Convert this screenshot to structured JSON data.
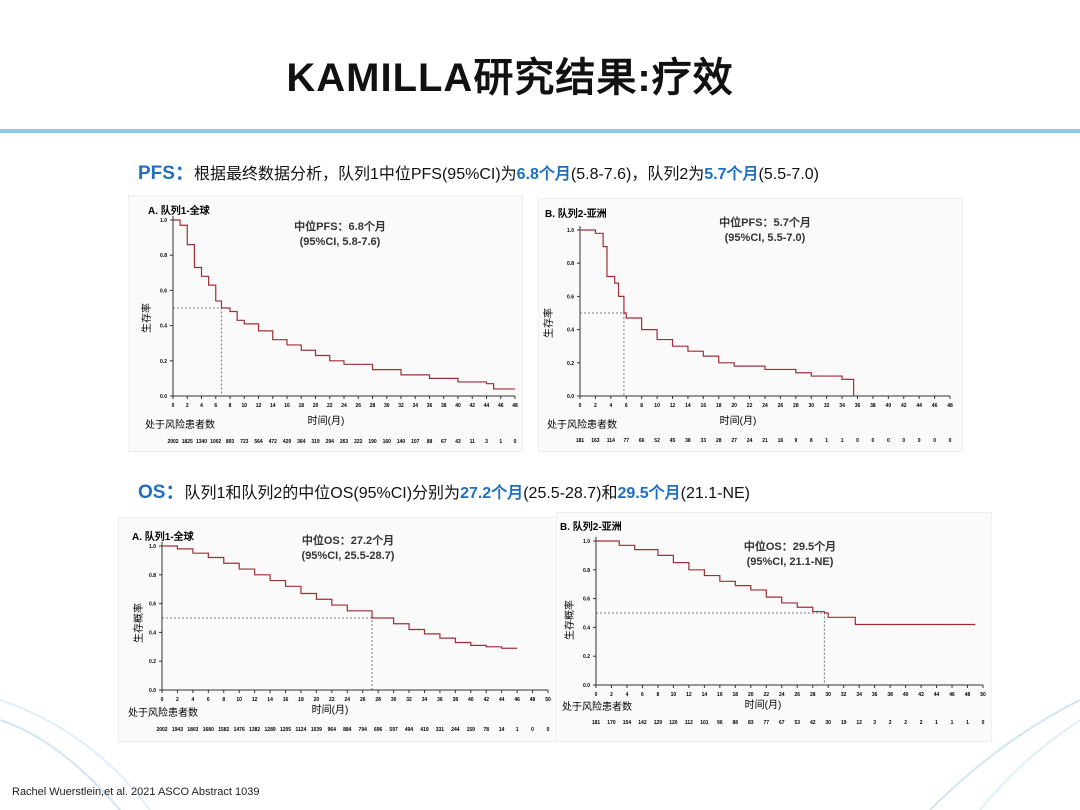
{
  "title": "KAMILLA研究结果:疗效",
  "pfs_summary": {
    "key": "PFS：",
    "t1": "根据最终数据分析，队列1中位PFS(95%CI)为",
    "v1": "6.8个月",
    "t2": "(5.8-7.6)，队列2为",
    "v2": "5.7个月",
    "t3": "(5.5-7.0)"
  },
  "os_summary": {
    "key": "OS：",
    "t1": "队列1和队列2的中位OS(95%CI)分别为",
    "v1": "27.2个月",
    "t2": "(25.5-28.7)和",
    "v2": "29.5个月",
    "t3": "(21.1-NE)"
  },
  "citation": "Rachel Wuerstlein,et al. 2021 ASCO Abstract 1039",
  "colors": {
    "accent": "#1f6fc0",
    "curve": "#b0303a",
    "rule": "#8fcbe0"
  },
  "chart_data": [
    {
      "type": "line",
      "id": "pfs-a",
      "panel_title": "A. 队列1-全球",
      "median_label": "中位PFS：6.8个月",
      "ci_label": "(95%CI, 5.8-7.6)",
      "ylabel": "生存率",
      "xlabel": "时间(月)",
      "at_risk_label": "处于风险患者数",
      "xlim": [
        0,
        48
      ],
      "ylim": [
        0,
        1
      ],
      "xticks": [
        0,
        2,
        4,
        6,
        8,
        10,
        12,
        14,
        16,
        18,
        20,
        22,
        24,
        26,
        28,
        30,
        32,
        34,
        36,
        38,
        40,
        42,
        44,
        46,
        48
      ],
      "yticks": [
        "0.0",
        "0.2",
        "0.4",
        "0.6",
        "0.8",
        "1.0"
      ],
      "median": 6.8,
      "at_risk": [
        2002,
        1825,
        1340,
        1002,
        893,
        723,
        564,
        472,
        429,
        364,
        319,
        294,
        263,
        222,
        190,
        160,
        140,
        107,
        88,
        67,
        43,
        11,
        3,
        1,
        0
      ],
      "curve": [
        [
          0,
          1
        ],
        [
          1,
          0.97
        ],
        [
          2,
          0.86
        ],
        [
          3,
          0.73
        ],
        [
          4,
          0.68
        ],
        [
          5,
          0.63
        ],
        [
          6,
          0.54
        ],
        [
          6.8,
          0.5
        ],
        [
          8,
          0.48
        ],
        [
          9,
          0.43
        ],
        [
          10,
          0.41
        ],
        [
          12,
          0.37
        ],
        [
          14,
          0.32
        ],
        [
          16,
          0.29
        ],
        [
          18,
          0.26
        ],
        [
          20,
          0.23
        ],
        [
          22,
          0.2
        ],
        [
          24,
          0.18
        ],
        [
          28,
          0.15
        ],
        [
          32,
          0.12
        ],
        [
          36,
          0.1
        ],
        [
          40,
          0.08
        ],
        [
          44,
          0.07
        ],
        [
          45,
          0.07
        ],
        [
          45,
          0.04
        ],
        [
          48,
          0.04
        ]
      ]
    },
    {
      "type": "line",
      "id": "pfs-b",
      "panel_title": "B. 队列2-亚洲",
      "median_label": "中位PFS：5.7个月",
      "ci_label": "(95%CI, 5.5-7.0)",
      "ylabel": "生存率",
      "xlabel": "时间(月)",
      "at_risk_label": "处于风险患者数",
      "xlim": [
        0,
        48
      ],
      "ylim": [
        0,
        1
      ],
      "xticks": [
        0,
        2,
        4,
        6,
        8,
        10,
        12,
        14,
        16,
        18,
        20,
        22,
        24,
        26,
        28,
        30,
        32,
        34,
        36,
        38,
        40,
        42,
        44,
        46,
        48
      ],
      "yticks": [
        "0.0",
        "0.2",
        "0.4",
        "0.6",
        "0.8",
        "1.0"
      ],
      "median": 5.7,
      "at_risk": [
        181,
        163,
        114,
        77,
        66,
        52,
        45,
        38,
        33,
        28,
        27,
        24,
        21,
        16,
        9,
        8,
        1,
        1,
        0,
        0,
        0,
        0,
        0,
        0,
        0
      ],
      "curve": [
        [
          0,
          1
        ],
        [
          2,
          0.98
        ],
        [
          3,
          0.9
        ],
        [
          3.5,
          0.72
        ],
        [
          4.5,
          0.68
        ],
        [
          5,
          0.6
        ],
        [
          5.7,
          0.5
        ],
        [
          6,
          0.47
        ],
        [
          8,
          0.4
        ],
        [
          10,
          0.34
        ],
        [
          12,
          0.3
        ],
        [
          14,
          0.27
        ],
        [
          16,
          0.24
        ],
        [
          18,
          0.2
        ],
        [
          20,
          0.18
        ],
        [
          24,
          0.16
        ],
        [
          28,
          0.14
        ],
        [
          30,
          0.12
        ],
        [
          34,
          0.1
        ],
        [
          35.5,
          0.1
        ],
        [
          35.5,
          0
        ]
      ]
    },
    {
      "type": "line",
      "id": "os-a",
      "panel_title": "A. 队列1-全球",
      "median_label": "中位OS：27.2个月",
      "ci_label": "(95%CI, 25.5-28.7)",
      "ylabel": "生存概率",
      "xlabel": "时间(月)",
      "at_risk_label": "处于风险患者数",
      "xlim": [
        0,
        50
      ],
      "ylim": [
        0,
        1
      ],
      "xticks": [
        0,
        2,
        4,
        6,
        8,
        10,
        12,
        14,
        16,
        18,
        20,
        22,
        24,
        26,
        28,
        30,
        32,
        34,
        36,
        38,
        40,
        42,
        44,
        46,
        48,
        50
      ],
      "yticks": [
        "0.0",
        "0.2",
        "0.4",
        "0.6",
        "0.8",
        "1.0"
      ],
      "median": 27.2,
      "at_risk": [
        2002,
        1943,
        1803,
        1680,
        1582,
        1476,
        1382,
        1289,
        1205,
        1124,
        1039,
        964,
        884,
        794,
        696,
        597,
        494,
        419,
        331,
        244,
        159,
        78,
        14,
        1,
        0,
        0
      ],
      "curve": [
        [
          0,
          1
        ],
        [
          2,
          0.98
        ],
        [
          4,
          0.95
        ],
        [
          6,
          0.92
        ],
        [
          8,
          0.88
        ],
        [
          10,
          0.84
        ],
        [
          12,
          0.8
        ],
        [
          14,
          0.76
        ],
        [
          16,
          0.72
        ],
        [
          18,
          0.67
        ],
        [
          20,
          0.63
        ],
        [
          22,
          0.59
        ],
        [
          24,
          0.55
        ],
        [
          27.2,
          0.5
        ],
        [
          30,
          0.46
        ],
        [
          32,
          0.42
        ],
        [
          34,
          0.39
        ],
        [
          36,
          0.36
        ],
        [
          38,
          0.33
        ],
        [
          40,
          0.31
        ],
        [
          42,
          0.3
        ],
        [
          44,
          0.29
        ],
        [
          46,
          0.29
        ]
      ]
    },
    {
      "type": "line",
      "id": "os-b",
      "panel_title": "B. 队列2-亚洲",
      "median_label": "中位OS：29.5个月",
      "ci_label": "(95%CI, 21.1-NE)",
      "ylabel": "生存概率",
      "xlabel": "时间(月)",
      "at_risk_label": "处于风险患者数",
      "xlim": [
        0,
        50
      ],
      "ylim": [
        0,
        1
      ],
      "xticks": [
        0,
        2,
        4,
        6,
        8,
        10,
        12,
        14,
        16,
        18,
        20,
        22,
        24,
        26,
        28,
        30,
        32,
        34,
        36,
        38,
        40,
        42,
        44,
        46,
        48,
        50
      ],
      "yticks": [
        "0.0",
        "0.2",
        "0.4",
        "0.6",
        "0.8",
        "1.0"
      ],
      "median": 29.5,
      "at_risk": [
        181,
        170,
        154,
        142,
        129,
        120,
        112,
        101,
        96,
        88,
        83,
        77,
        67,
        53,
        42,
        30,
        19,
        12,
        3,
        2,
        2,
        2,
        1,
        1,
        1,
        0
      ],
      "curve": [
        [
          0,
          1
        ],
        [
          2,
          1
        ],
        [
          3,
          0.97
        ],
        [
          5,
          0.94
        ],
        [
          8,
          0.9
        ],
        [
          10,
          0.85
        ],
        [
          12,
          0.8
        ],
        [
          14,
          0.76
        ],
        [
          16,
          0.72
        ],
        [
          18,
          0.69
        ],
        [
          20,
          0.66
        ],
        [
          22,
          0.61
        ],
        [
          24,
          0.57
        ],
        [
          26,
          0.54
        ],
        [
          28,
          0.51
        ],
        [
          29.5,
          0.5
        ],
        [
          30,
          0.47
        ],
        [
          33,
          0.47
        ],
        [
          33.5,
          0.42
        ],
        [
          49,
          0.42
        ]
      ]
    }
  ]
}
